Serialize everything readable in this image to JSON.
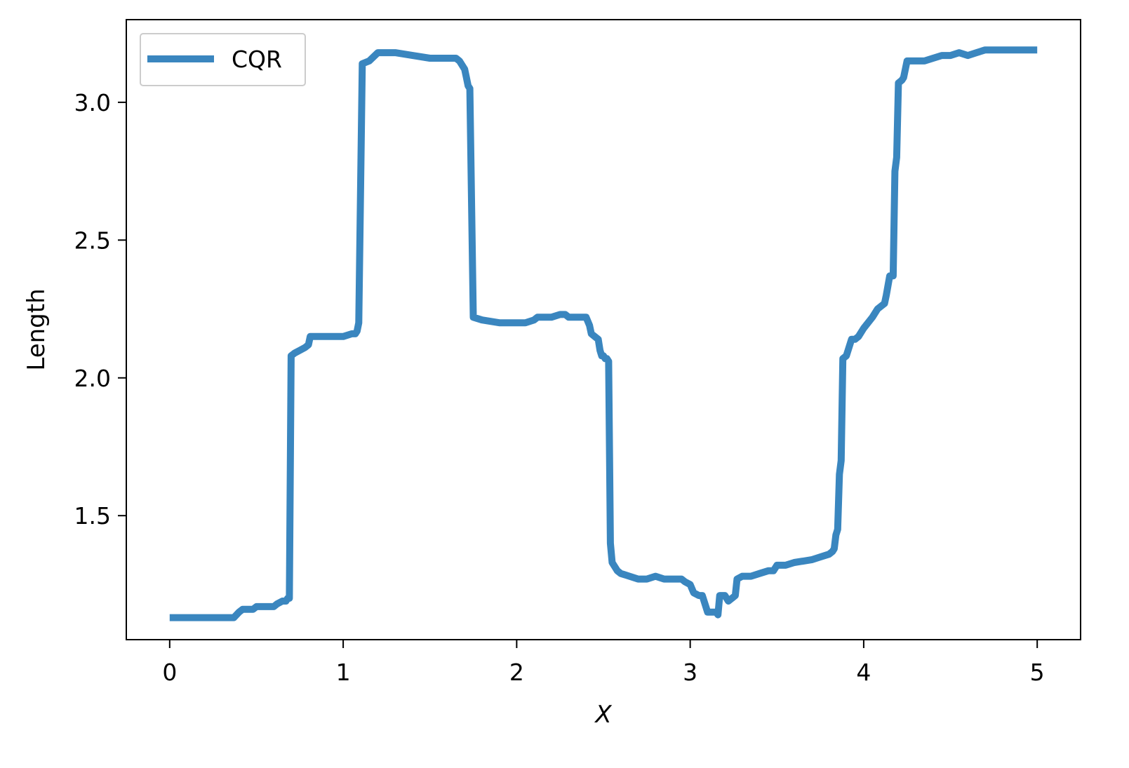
{
  "chart_data": {
    "type": "line",
    "xlabel": "X",
    "ylabel": "Length",
    "xlim": [
      -0.25,
      5.25
    ],
    "ylim": [
      1.05,
      3.3
    ],
    "xticks": [
      0,
      1,
      2,
      3,
      4,
      5
    ],
    "yticks": [
      1.5,
      2.0,
      2.5,
      3.0
    ],
    "xtick_labels": [
      "0",
      "1",
      "2",
      "3",
      "4",
      "5"
    ],
    "ytick_labels": [
      "1.5",
      "2.0",
      "2.5",
      "3.0"
    ],
    "grid": false,
    "legend_position": "upper-left",
    "series": [
      {
        "name": "CQR",
        "color": "#3a86bf",
        "x": [
          0.0,
          0.1,
          0.2,
          0.3,
          0.37,
          0.4,
          0.42,
          0.45,
          0.48,
          0.5,
          0.6,
          0.62,
          0.65,
          0.67,
          0.68,
          0.69,
          0.7,
          0.72,
          0.75,
          0.78,
          0.8,
          0.81,
          0.9,
          1.0,
          1.05,
          1.07,
          1.08,
          1.09,
          1.11,
          1.15,
          1.2,
          1.3,
          1.4,
          1.5,
          1.55,
          1.62,
          1.65,
          1.67,
          1.7,
          1.71,
          1.72,
          1.73,
          1.75,
          1.8,
          1.9,
          2.0,
          2.05,
          2.1,
          2.12,
          2.15,
          2.2,
          2.25,
          2.28,
          2.3,
          2.32,
          2.35,
          2.4,
          2.42,
          2.43,
          2.45,
          2.47,
          2.48,
          2.49,
          2.5,
          2.51,
          2.52,
          2.53,
          2.54,
          2.55,
          2.56,
          2.57,
          2.58,
          2.6,
          2.65,
          2.7,
          2.75,
          2.8,
          2.85,
          2.9,
          2.95,
          2.97,
          3.0,
          3.02,
          3.05,
          3.07,
          3.1,
          3.15,
          3.16,
          3.17,
          3.2,
          3.22,
          3.24,
          3.26,
          3.27,
          3.3,
          3.35,
          3.4,
          3.45,
          3.48,
          3.5,
          3.55,
          3.6,
          3.7,
          3.75,
          3.8,
          3.82,
          3.83,
          3.84,
          3.85,
          3.86,
          3.87,
          3.88,
          3.9,
          3.93,
          3.95,
          3.97,
          4.0,
          4.05,
          4.08,
          4.1,
          4.12,
          4.13,
          4.15,
          4.17,
          4.18,
          4.19,
          4.2,
          4.22,
          4.23,
          4.25,
          4.3,
          4.35,
          4.4,
          4.45,
          4.5,
          4.55,
          4.6,
          4.65,
          4.7,
          4.8,
          4.9,
          5.0
        ],
        "y": [
          1.13,
          1.13,
          1.13,
          1.13,
          1.13,
          1.15,
          1.16,
          1.16,
          1.16,
          1.17,
          1.17,
          1.18,
          1.19,
          1.19,
          1.2,
          1.2,
          2.08,
          2.09,
          2.1,
          2.11,
          2.12,
          2.15,
          2.15,
          2.15,
          2.16,
          2.16,
          2.17,
          2.2,
          3.14,
          3.15,
          3.18,
          3.18,
          3.17,
          3.16,
          3.16,
          3.16,
          3.16,
          3.15,
          3.12,
          3.09,
          3.06,
          3.05,
          2.22,
          2.21,
          2.2,
          2.2,
          2.2,
          2.21,
          2.22,
          2.22,
          2.22,
          2.23,
          2.23,
          2.22,
          2.22,
          2.22,
          2.22,
          2.19,
          2.16,
          2.15,
          2.14,
          2.1,
          2.08,
          2.08,
          2.07,
          2.07,
          2.06,
          1.4,
          1.33,
          1.32,
          1.31,
          1.3,
          1.29,
          1.28,
          1.27,
          1.27,
          1.28,
          1.27,
          1.27,
          1.27,
          1.26,
          1.25,
          1.22,
          1.21,
          1.21,
          1.15,
          1.15,
          1.14,
          1.21,
          1.21,
          1.19,
          1.2,
          1.21,
          1.27,
          1.28,
          1.28,
          1.29,
          1.3,
          1.3,
          1.32,
          1.32,
          1.33,
          1.34,
          1.35,
          1.36,
          1.37,
          1.38,
          1.43,
          1.45,
          1.65,
          1.7,
          2.07,
          2.08,
          2.14,
          2.14,
          2.15,
          2.18,
          2.22,
          2.25,
          2.26,
          2.27,
          2.3,
          2.37,
          2.37,
          2.75,
          2.8,
          3.07,
          3.08,
          3.09,
          3.15,
          3.15,
          3.15,
          3.16,
          3.17,
          3.17,
          3.18,
          3.17,
          3.18,
          3.19,
          3.19,
          3.19,
          3.19
        ]
      }
    ]
  }
}
